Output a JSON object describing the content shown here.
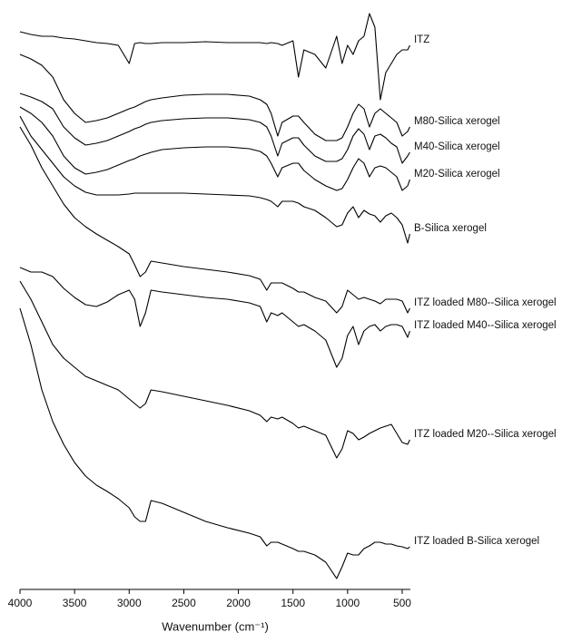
{
  "chart_data": {
    "type": "line",
    "x_label": "Wavenumber (cm⁻¹)",
    "x": [
      4000,
      3900,
      3800,
      3700,
      3600,
      3500,
      3400,
      3300,
      3200,
      3100,
      3000,
      2950,
      2900,
      2850,
      2800,
      2700,
      2500,
      2300,
      2100,
      1900,
      1800,
      1740,
      1700,
      1640,
      1600,
      1500,
      1450,
      1400,
      1300,
      1200,
      1100,
      1050,
      1000,
      950,
      900,
      850,
      800,
      750,
      700,
      650,
      600,
      550,
      500,
      450,
      430
    ],
    "xlim": [
      4000,
      425
    ],
    "xticks": [
      4000,
      3500,
      3000,
      2500,
      2000,
      1500,
      1000,
      500
    ],
    "ylim": [
      0,
      650
    ],
    "color": "#000000",
    "series": [
      {
        "name": "ITZ",
        "values": [
          615,
          612,
          610,
          610,
          608,
          607,
          605,
          603,
          602,
          600,
          580,
          602,
          603,
          602,
          602,
          603,
          603,
          604,
          603,
          603,
          603,
          602,
          603,
          602,
          600,
          605,
          565,
          595,
          590,
          575,
          610,
          580,
          600,
          590,
          605,
          610,
          635,
          620,
          540,
          570,
          580,
          590,
          595,
          595,
          600
        ]
      },
      {
        "name": "M80-Silica xerogel",
        "values": [
          590,
          585,
          578,
          565,
          540,
          525,
          515,
          517,
          520,
          525,
          530,
          532,
          535,
          538,
          540,
          542,
          545,
          546,
          546,
          544,
          540,
          535,
          525,
          500,
          515,
          522,
          522,
          515,
          502,
          495,
          495,
          498,
          510,
          525,
          535,
          530,
          510,
          525,
          530,
          525,
          520,
          515,
          500,
          505,
          510
        ]
      },
      {
        "name": "M40-Silica xerogel",
        "values": [
          547,
          543,
          538,
          530,
          510,
          498,
          490,
          492,
          495,
          500,
          505,
          508,
          510,
          513,
          515,
          517,
          519,
          520,
          520,
          518,
          515,
          510,
          500,
          478,
          492,
          498,
          498,
          490,
          478,
          472,
          472,
          475,
          485,
          500,
          508,
          502,
          485,
          500,
          502,
          498,
          492,
          488,
          470,
          478,
          482
        ]
      },
      {
        "name": "M20-Silica xerogel",
        "values": [
          532,
          525,
          515,
          500,
          478,
          465,
          458,
          460,
          463,
          468,
          473,
          475,
          478,
          480,
          482,
          485,
          487,
          488,
          488,
          486,
          483,
          478,
          470,
          455,
          465,
          470,
          470,
          462,
          452,
          445,
          440,
          442,
          452,
          465,
          475,
          470,
          455,
          465,
          467,
          465,
          460,
          455,
          440,
          445,
          452
        ]
      },
      {
        "name": "B-Silica xerogel",
        "values": [
          522,
          500,
          485,
          470,
          455,
          445,
          438,
          435,
          435,
          435,
          436,
          437,
          437,
          437,
          437,
          437,
          437,
          436,
          435,
          434,
          432,
          430,
          428,
          422,
          428,
          428,
          426,
          422,
          418,
          410,
          400,
          402,
          415,
          422,
          410,
          418,
          414,
          412,
          405,
          412,
          415,
          410,
          402,
          382,
          392
        ]
      },
      {
        "name": "ITZ loaded M80--Silica xerogel",
        "values": [
          510,
          490,
          465,
          445,
          425,
          410,
          400,
          392,
          385,
          378,
          370,
          358,
          345,
          350,
          362,
          360,
          356,
          353,
          350,
          346,
          342,
          330,
          338,
          338,
          338,
          332,
          328,
          328,
          322,
          318,
          305,
          312,
          330,
          325,
          320,
          322,
          320,
          318,
          315,
          320,
          320,
          320,
          318,
          305,
          310
        ]
      },
      {
        "name": "ITZ loaded M40--Silica xerogel",
        "values": [
          355,
          350,
          350,
          345,
          332,
          322,
          314,
          312,
          317,
          325,
          330,
          320,
          290,
          305,
          330,
          328,
          325,
          322,
          320,
          316,
          312,
          295,
          305,
          302,
          305,
          295,
          290,
          292,
          285,
          275,
          245,
          255,
          280,
          290,
          270,
          285,
          290,
          292,
          285,
          290,
          292,
          292,
          290,
          278,
          285
        ]
      },
      {
        "name": "ITZ loaded M20--Silica xerogel",
        "values": [
          340,
          320,
          295,
          270,
          255,
          245,
          235,
          230,
          225,
          220,
          210,
          205,
          200,
          205,
          220,
          218,
          213,
          208,
          203,
          197,
          192,
          185,
          190,
          188,
          190,
          183,
          178,
          180,
          175,
          170,
          145,
          155,
          175,
          172,
          165,
          168,
          172,
          175,
          178,
          180,
          182,
          172,
          162,
          160,
          165
        ]
      },
      {
        "name": "ITZ loaded B-Silica xerogel",
        "values": [
          310,
          270,
          220,
          185,
          160,
          140,
          125,
          115,
          108,
          100,
          90,
          80,
          75,
          75,
          98,
          95,
          85,
          75,
          68,
          62,
          58,
          48,
          52,
          52,
          50,
          45,
          42,
          42,
          38,
          30,
          12,
          25,
          40,
          38,
          38,
          45,
          48,
          52,
          52,
          50,
          50,
          48,
          47,
          45,
          47
        ]
      }
    ]
  }
}
